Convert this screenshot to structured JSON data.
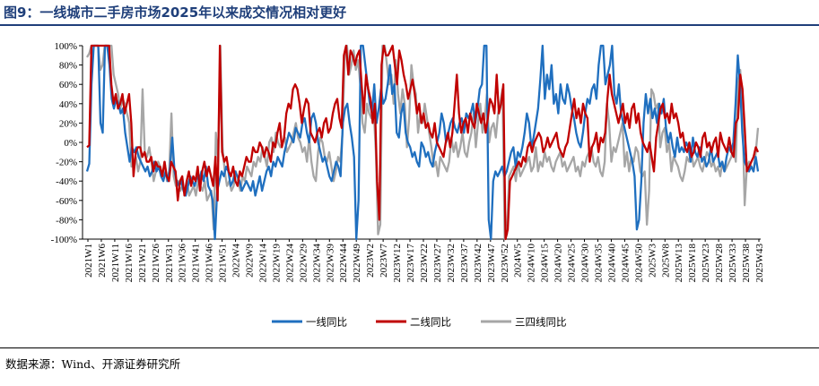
{
  "title": "图9：一线城市二手房市场2025年以来成交情况相对更好",
  "source": "数据来源：Wind、开源证券研究所",
  "colors": {
    "tier1": "#1f6fbf",
    "tier2": "#c00000",
    "tier34": "#a6a6a6",
    "title": "#1f3f7a"
  },
  "chart_data": {
    "type": "line",
    "title": "一线城市二手房市场2025年以来成交情况相对更好",
    "xlabel": "",
    "ylabel": "",
    "ylim": [
      -100,
      100
    ],
    "y_ticks": [
      "100%",
      "80%",
      "60%",
      "40%",
      "20%",
      "0%",
      "-20%",
      "-40%",
      "-60%",
      "-80%",
      "-100%"
    ],
    "x_ticks": [
      "2021W1",
      "2021W6",
      "2021W11",
      "2021W16",
      "2021W21",
      "2021W26",
      "2021W31",
      "2021W36",
      "2021W41",
      "2021W46",
      "2021W51",
      "2022W4",
      "2022W9",
      "2022W14",
      "2022W19",
      "2022W24",
      "2022W29",
      "2022W34",
      "2022W39",
      "2022W44",
      "2022W49",
      "2023W2",
      "2023W7",
      "2023W12",
      "2023W17",
      "2023W22",
      "2023W27",
      "2023W32",
      "2023W37",
      "2023W42",
      "2023W47",
      "2023W52",
      "2024W5",
      "2024W10",
      "2024W15",
      "2024W20",
      "2024W25",
      "2024W30",
      "2024W35",
      "2024W40",
      "2024W45",
      "2024W50",
      "2025W3",
      "2025W8",
      "2025W13",
      "2025W18",
      "2025W23",
      "2025W28",
      "2025W33",
      "2025W38",
      "2025W43"
    ],
    "series": [
      {
        "name": "一线同比",
        "key": "tier1",
        "values": [
          -30,
          -22,
          60,
          100,
          100,
          100,
          20,
          10,
          100,
          100,
          80,
          45,
          35,
          45,
          40,
          30,
          35,
          10,
          -5,
          -20,
          -5,
          -10,
          -5,
          -15,
          -20,
          -25,
          -30,
          -25,
          -35,
          -30,
          -20,
          -30,
          -25,
          -35,
          -40,
          -30,
          -40,
          -25,
          5,
          -30,
          -40,
          -45,
          -40,
          -50,
          -55,
          -45,
          -35,
          -40,
          -45,
          -35,
          -40,
          -30,
          -40,
          -25,
          -45,
          -50,
          -60,
          -100,
          -50,
          -40,
          -30,
          -35,
          -25,
          -30,
          -45,
          -40,
          -30,
          -35,
          -40,
          -50,
          -45,
          -40,
          -45,
          -50,
          -40,
          -55,
          -45,
          -35,
          -50,
          -40,
          -30,
          -25,
          -35,
          -20,
          -25,
          -15,
          -20,
          -25,
          -10,
          0,
          10,
          5,
          0,
          15,
          10,
          5,
          20,
          25,
          10,
          0,
          25,
          30,
          20,
          0,
          -10,
          -20,
          -15,
          -25,
          -35,
          -40,
          -30,
          -20,
          -25,
          -35,
          20,
          35,
          40,
          20,
          5,
          -15,
          -100,
          -60,
          100,
          100,
          80,
          60,
          40,
          30,
          60,
          20,
          35,
          55,
          40,
          45,
          60,
          80,
          50,
          60,
          10,
          5,
          30,
          40,
          10,
          0,
          -5,
          -15,
          -10,
          -20,
          -25,
          0,
          -5,
          -15,
          -10,
          -20,
          -25,
          -10,
          0,
          10,
          30,
          20,
          0,
          10,
          20,
          25,
          15,
          10,
          20,
          25,
          10,
          30,
          25,
          30,
          40,
          20,
          35,
          55,
          60,
          100,
          100,
          -80,
          -100,
          -40,
          -30,
          -35,
          -30,
          -25,
          -35,
          -30,
          -20,
          -10,
          -5,
          -25,
          -10,
          -15,
          -5,
          10,
          30,
          20,
          -5,
          5,
          20,
          35,
          65,
          100,
          45,
          70,
          55,
          80,
          40,
          50,
          30,
          60,
          45,
          40,
          60,
          50,
          35,
          25,
          10,
          0,
          -5,
          10,
          30,
          45,
          40,
          55,
          60,
          45,
          80,
          100,
          100,
          60,
          70,
          80,
          100,
          50,
          40,
          60,
          30,
          20,
          10,
          0,
          -10,
          -20,
          -35,
          -90,
          -80,
          -40,
          20,
          50,
          30,
          45,
          25,
          35,
          20,
          40,
          30,
          45,
          15,
          0,
          10,
          -5,
          -15,
          5,
          -10,
          -5,
          -10,
          0,
          -5,
          -20,
          5,
          -10,
          -15,
          -5,
          -20,
          -15,
          -25,
          -20,
          -5,
          -20,
          -15,
          -10,
          -25,
          -20,
          -30,
          -15,
          -5,
          -10,
          0,
          40,
          90,
          60,
          10,
          -20,
          -25,
          -30,
          -25,
          -30,
          -15,
          -30
        ]
      },
      {
        "name": "二线同比",
        "key": "tier2",
        "values": [
          -5,
          -3,
          100,
          100,
          100,
          100,
          100,
          100,
          100,
          100,
          100,
          60,
          40,
          50,
          35,
          40,
          50,
          30,
          40,
          50,
          20,
          -35,
          -10,
          -5,
          -5,
          -15,
          -10,
          -20,
          -20,
          -15,
          -30,
          -20,
          -25,
          -25,
          -35,
          -20,
          -35,
          -40,
          -20,
          -25,
          -30,
          -60,
          -40,
          -35,
          -55,
          -40,
          -30,
          -45,
          -35,
          -40,
          -25,
          -50,
          -30,
          -20,
          -35,
          -25,
          -35,
          -45,
          -15,
          -60,
          100,
          -10,
          -20,
          -15,
          -30,
          -35,
          -25,
          -40,
          -45,
          -30,
          -35,
          -25,
          -15,
          -20,
          -20,
          -5,
          -10,
          -10,
          0,
          -5,
          -15,
          -5,
          -10,
          -20,
          0,
          -5,
          10,
          20,
          -5,
          5,
          30,
          40,
          35,
          55,
          60,
          55,
          40,
          20,
          35,
          45,
          40,
          10,
          5,
          0,
          10,
          15,
          5,
          20,
          25,
          10,
          15,
          30,
          40,
          45,
          25,
          15,
          90,
          100,
          70,
          95,
          90,
          80,
          90,
          95,
          60,
          30,
          70,
          55,
          45,
          20,
          40,
          -40,
          -80,
          80,
          100,
          90,
          90,
          95,
          100,
          80,
          60,
          95,
          85,
          70,
          60,
          45,
          55,
          65,
          50,
          30,
          40,
          20,
          30,
          15,
          20,
          10,
          5,
          20,
          0,
          -5,
          -10,
          -15,
          0,
          10,
          -5,
          10,
          40,
          70,
          30,
          10,
          20,
          25,
          10,
          30,
          20,
          15,
          40,
          30,
          20,
          30,
          10,
          25,
          45,
          40,
          30,
          70,
          30,
          40,
          60,
          -100,
          -90,
          -40,
          -35,
          -30,
          -25,
          -20,
          -25,
          -15,
          -20,
          -5,
          0,
          -10,
          0,
          5,
          10,
          5,
          -10,
          -5,
          5,
          -5,
          0,
          5,
          10,
          -5,
          -10,
          -15,
          -5,
          0,
          15,
          30,
          45,
          25,
          35,
          20,
          40,
          30,
          25,
          -20,
          -5,
          0,
          10,
          -10,
          5,
          0,
          10,
          45,
          70,
          50,
          40,
          30,
          20,
          30,
          40,
          20,
          30,
          15,
          35,
          40,
          20,
          30,
          10,
          0,
          -5,
          -10,
          0,
          -15,
          -30,
          5,
          20,
          35,
          40,
          25,
          30,
          20,
          40,
          25,
          30,
          20,
          5,
          10,
          -5,
          -10,
          0,
          -15,
          -10,
          0,
          -5,
          -15,
          5,
          10,
          -5,
          0,
          -10,
          0,
          5,
          -15,
          10,
          0,
          -5,
          -10,
          5,
          -10,
          -15,
          20,
          25,
          70,
          55,
          15,
          -30,
          -25,
          -20,
          -15,
          -5,
          -10
        ]
      },
      {
        "name": "三四线同比",
        "key": "tier34",
        "values": [
          88,
          92,
          100,
          100,
          100,
          100,
          75,
          80,
          100,
          100,
          100,
          100,
          70,
          60,
          50,
          35,
          45,
          40,
          30,
          20,
          -25,
          -20,
          -15,
          -30,
          -20,
          55,
          -10,
          -15,
          -5,
          -20,
          -40,
          -30,
          -20,
          -25,
          -35,
          -20,
          -40,
          -30,
          30,
          -35,
          -45,
          -40,
          -50,
          -45,
          -50,
          -40,
          -55,
          -50,
          -45,
          -55,
          -40,
          -45,
          -50,
          -40,
          -60,
          -55,
          -50,
          -90,
          10,
          -20,
          100,
          -5,
          -30,
          -45,
          -40,
          -50,
          -45,
          -30,
          -40,
          -50,
          -35,
          -40,
          -25,
          -30,
          -35,
          -20,
          -25,
          -15,
          -20,
          -5,
          -15,
          -25,
          0,
          5,
          -10,
          10,
          0,
          -5,
          0,
          5,
          -10,
          -5,
          0,
          10,
          20,
          5,
          0,
          -10,
          -5,
          -20,
          5,
          -20,
          -35,
          -40,
          -10,
          5,
          0,
          -15,
          -20,
          -10,
          -25,
          -40,
          -30,
          -15,
          -20,
          10,
          90,
          100,
          70,
          80,
          95,
          75,
          85,
          60,
          20,
          10,
          40,
          30,
          25,
          35,
          -10,
          -95,
          -85,
          100,
          100,
          80,
          60,
          70,
          40,
          85,
          50,
          30,
          55,
          40,
          -5,
          25,
          80,
          60,
          50,
          10,
          30,
          20,
          40,
          25,
          10,
          -5,
          -25,
          -20,
          -35,
          -15,
          -20,
          -25,
          -30,
          -20,
          5,
          -10,
          0,
          -15,
          -5,
          10,
          -10,
          -15,
          0,
          10,
          30,
          -5,
          20,
          40,
          10,
          25,
          50,
          0,
          15,
          20,
          5,
          30,
          40,
          55,
          -100,
          -95,
          -35,
          -30,
          -25,
          -40,
          -20,
          -35,
          -30,
          -25,
          -20,
          -15,
          -30,
          -25,
          -5,
          -30,
          -20,
          -25,
          -10,
          -20,
          -15,
          -25,
          -30,
          -20,
          -15,
          -10,
          -25,
          -20,
          -30,
          -25,
          -20,
          -15,
          -30,
          -25,
          -35,
          -20,
          -25,
          -15,
          -10,
          -5,
          -20,
          -25,
          -15,
          -30,
          -35,
          -20,
          40,
          20,
          -20,
          -5,
          -10,
          0,
          10,
          20,
          -25,
          -10,
          -30,
          -15,
          -20,
          -5,
          -10,
          -30,
          -35,
          -30,
          -85,
          -50,
          55,
          50,
          35,
          40,
          -5,
          10,
          15,
          -10,
          0,
          -30,
          -15,
          -20,
          -25,
          -35,
          -40,
          -30,
          -15,
          -20,
          -10,
          -25,
          -20,
          -15,
          -25,
          -30,
          -20,
          -10,
          -15,
          -25,
          -20,
          -30,
          -25,
          -35,
          -20,
          -30,
          -25,
          -20,
          -15,
          -5,
          -20,
          60,
          75,
          30,
          -65,
          -25,
          -20,
          -25,
          -30,
          -10,
          15
        ]
      }
    ],
    "legend": {
      "position": "bottom",
      "entries": [
        "一线同比",
        "二线同比",
        "三四线同比"
      ]
    },
    "grid": false
  }
}
